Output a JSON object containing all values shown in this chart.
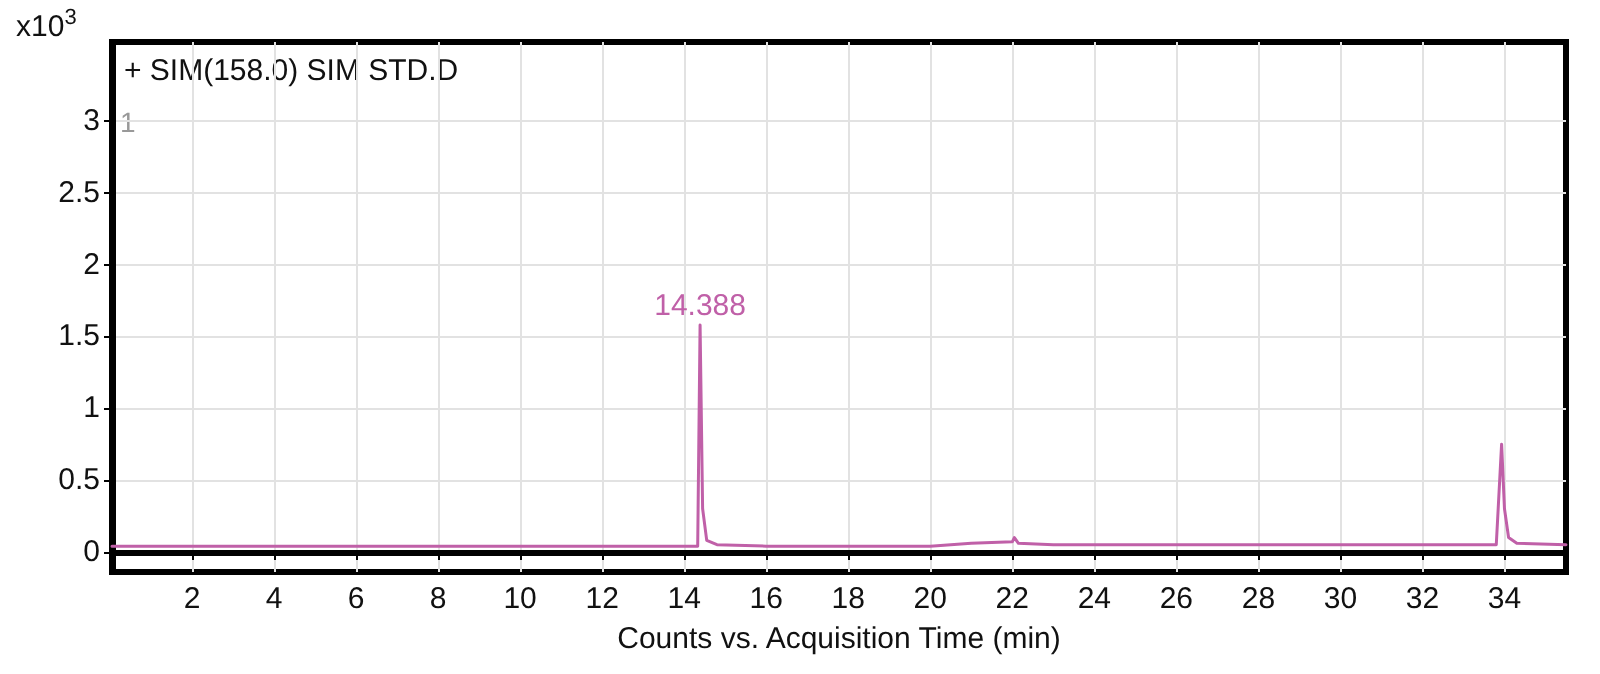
{
  "chart_data": {
    "type": "line",
    "title": "+ SIM(158.0) SIM STD.D",
    "xlabel": "Counts vs. Acquisition Time (min)",
    "ylabel": "x10$^{3}$",
    "x": [
      0.05,
      14.2,
      14.33,
      14.388,
      14.45,
      14.55,
      14.8,
      16,
      19,
      20,
      21,
      22,
      22.05,
      22.15,
      23,
      26,
      30,
      33.8,
      33.93,
      34.0,
      34.1,
      34.3,
      35.5
    ],
    "series": [
      {
        "color": "#c060a8",
        "values": [
          0.04,
          0.04,
          0.04,
          1.58,
          0.3,
          0.08,
          0.05,
          0.04,
          0.04,
          0.04,
          0.06,
          0.07,
          0.1,
          0.06,
          0.05,
          0.05,
          0.05,
          0.05,
          0.75,
          0.3,
          0.1,
          0.06,
          0.05
        ]
      }
    ],
    "annotations": [
      {
        "text": "14.388",
        "x": 14.388,
        "y": 1.58
      },
      "1"
    ],
    "xlim": [
      0.05,
      35.5
    ],
    "xticks": [
      2,
      4,
      6,
      8,
      10,
      12,
      14,
      16,
      18,
      20,
      22,
      24,
      26,
      28,
      30,
      32,
      34
    ],
    "ylim": [
      -0.14,
      3.55
    ],
    "yticks": [
      0,
      0.5,
      1,
      1.5,
      2,
      2.5,
      3
    ],
    "grid": true,
    "marker": "none",
    "line_style": "solid"
  }
}
